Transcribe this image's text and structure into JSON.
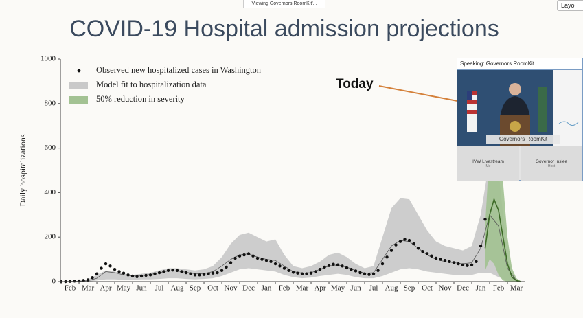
{
  "chart_data": {
    "type": "scatter",
    "title": "COVID-19 Hospital admission projections",
    "y_label": "Daily hospitalizations",
    "annotation": "Today",
    "xlim": [
      -0.54,
      25.5
    ],
    "ylim": [
      0,
      1000
    ],
    "yticks": [
      0,
      200,
      400,
      600,
      800,
      1000
    ],
    "xticks": [
      {
        "value": 0,
        "label": "Feb"
      },
      {
        "value": 1,
        "label": "Mar"
      },
      {
        "value": 2,
        "label": "Apr"
      },
      {
        "value": 3,
        "label": "May"
      },
      {
        "value": 4,
        "label": "Jun"
      },
      {
        "value": 5,
        "label": "Jul"
      },
      {
        "value": 6,
        "label": "Aug"
      },
      {
        "value": 7,
        "label": "Sep"
      },
      {
        "value": 8,
        "label": "Oct"
      },
      {
        "value": 9,
        "label": "Nov"
      },
      {
        "value": 10,
        "label": "Dec"
      },
      {
        "value": 11,
        "label": "Jan"
      },
      {
        "value": 12,
        "label": "Feb"
      },
      {
        "value": 13,
        "label": "Mar"
      },
      {
        "value": 14,
        "label": "Apr"
      },
      {
        "value": 15,
        "label": "May"
      },
      {
        "value": 16,
        "label": "Jun"
      },
      {
        "value": 17,
        "label": "Jul"
      },
      {
        "value": 18,
        "label": "Aug"
      },
      {
        "value": 19,
        "label": "Sep"
      },
      {
        "value": 20,
        "label": "Oct"
      },
      {
        "value": 21,
        "label": "Nov"
      },
      {
        "value": 22,
        "label": "Dec"
      },
      {
        "value": 23,
        "label": "Jan"
      },
      {
        "value": 24,
        "label": "Feb"
      },
      {
        "value": 25,
        "label": "Mar"
      }
    ],
    "series": [
      {
        "name": "Observed new hospitalized cases in Washington",
        "type": "scatter",
        "color": "#111111",
        "x": [
          -0.5,
          -0.25,
          0,
          0.25,
          0.5,
          0.75,
          1,
          1.25,
          1.5,
          1.75,
          2,
          2.25,
          2.5,
          2.75,
          3,
          3.25,
          3.5,
          3.75,
          4,
          4.25,
          4.5,
          4.75,
          5,
          5.25,
          5.5,
          5.75,
          6,
          6.25,
          6.5,
          6.75,
          7,
          7.25,
          7.5,
          7.75,
          8,
          8.25,
          8.5,
          8.75,
          9,
          9.25,
          9.5,
          9.75,
          10,
          10.25,
          10.5,
          10.75,
          11,
          11.25,
          11.5,
          11.75,
          12,
          12.25,
          12.5,
          12.75,
          13,
          13.25,
          13.5,
          13.75,
          14,
          14.25,
          14.5,
          14.75,
          15,
          15.25,
          15.5,
          15.75,
          16,
          16.25,
          16.5,
          16.75,
          17,
          17.25,
          17.5,
          17.75,
          18,
          18.25,
          18.5,
          18.75,
          19,
          19.25,
          19.5,
          19.75,
          20,
          20.25,
          20.5,
          20.75,
          21,
          21.25,
          21.5,
          21.75,
          22,
          22.25,
          22.5,
          22.75,
          23,
          23.25
        ],
        "values": [
          0,
          0,
          1,
          2,
          3,
          5,
          8,
          18,
          35,
          60,
          80,
          70,
          55,
          45,
          38,
          30,
          25,
          22,
          25,
          28,
          30,
          35,
          40,
          45,
          50,
          52,
          50,
          45,
          40,
          35,
          30,
          30,
          32,
          35,
          38,
          40,
          50,
          65,
          85,
          105,
          115,
          120,
          125,
          115,
          105,
          100,
          95,
          90,
          80,
          70,
          60,
          50,
          42,
          38,
          35,
          35,
          38,
          45,
          55,
          65,
          72,
          78,
          75,
          70,
          62,
          55,
          48,
          40,
          35,
          32,
          35,
          50,
          80,
          110,
          140,
          165,
          180,
          190,
          185,
          170,
          150,
          135,
          125,
          115,
          105,
          100,
          95,
          90,
          85,
          80,
          75,
          72,
          75,
          90,
          160,
          280
        ]
      },
      {
        "name": "Model fit to hospitalization data",
        "type": "band",
        "color": "#c9c9c9",
        "line_color": "#555555",
        "x": [
          -0.5,
          0,
          0.5,
          1,
          1.5,
          2,
          2.5,
          3,
          3.5,
          4,
          4.5,
          5,
          5.5,
          6,
          6.5,
          7,
          7.5,
          8,
          8.5,
          9,
          9.5,
          10,
          10.5,
          11,
          11.5,
          12,
          12.5,
          13,
          13.5,
          14,
          14.5,
          15,
          15.5,
          16,
          16.5,
          17,
          17.5,
          18,
          18.5,
          19,
          19.5,
          20,
          20.5,
          21,
          21.5,
          22,
          22.5,
          23,
          23.5,
          24,
          24.5,
          25
        ],
        "upper": [
          0,
          1,
          3,
          10,
          30,
          50,
          45,
          35,
          30,
          35,
          40,
          50,
          60,
          60,
          55,
          50,
          55,
          70,
          110,
          170,
          210,
          220,
          200,
          180,
          190,
          120,
          70,
          60,
          70,
          90,
          120,
          130,
          110,
          80,
          60,
          70,
          200,
          330,
          375,
          370,
          300,
          230,
          180,
          160,
          150,
          140,
          160,
          300,
          550,
          500,
          100,
          5
        ],
        "lower": [
          0,
          0,
          0,
          0,
          5,
          10,
          10,
          8,
          8,
          10,
          10,
          12,
          15,
          15,
          12,
          10,
          12,
          15,
          25,
          40,
          55,
          60,
          55,
          50,
          45,
          30,
          20,
          15,
          18,
          25,
          30,
          35,
          30,
          20,
          15,
          15,
          25,
          40,
          55,
          60,
          55,
          45,
          40,
          35,
          30,
          30,
          30,
          40,
          40,
          20,
          5,
          0
        ],
        "values": [
          0,
          1,
          2,
          4,
          15,
          45,
          40,
          30,
          25,
          28,
          32,
          40,
          48,
          48,
          42,
          35,
          35,
          45,
          70,
          100,
          120,
          125,
          110,
          100,
          95,
          70,
          45,
          38,
          40,
          55,
          70,
          75,
          65,
          50,
          38,
          40,
          100,
          160,
          185,
          180,
          150,
          120,
          100,
          90,
          85,
          80,
          85,
          150,
          300,
          250,
          60,
          5
        ]
      },
      {
        "name": "50% reduction in severity",
        "type": "band",
        "color": "#a3c293",
        "line_color": "#3d6b27",
        "x": [
          23.25,
          23.5,
          23.75,
          24,
          24.25,
          24.5,
          24.75,
          25,
          25.25
        ],
        "upper": [
          250,
          600,
          800,
          700,
          450,
          200,
          60,
          15,
          2
        ],
        "lower": [
          50,
          100,
          80,
          30,
          5,
          0,
          0,
          0,
          0
        ],
        "values": [
          150,
          300,
          370,
          320,
          200,
          80,
          20,
          5,
          0
        ]
      }
    ]
  },
  "ui": {
    "top_banner": "Viewing Governors RoomKit'...",
    "layout_button": "Layo",
    "speaker_label": "Speaking: Governors RoomKit",
    "video_caption": "Governors RoomKit",
    "tiles": [
      {
        "name": "IVW Livestream",
        "role": "Me"
      },
      {
        "name": "Governor Inslee",
        "role": "Host"
      }
    ]
  }
}
